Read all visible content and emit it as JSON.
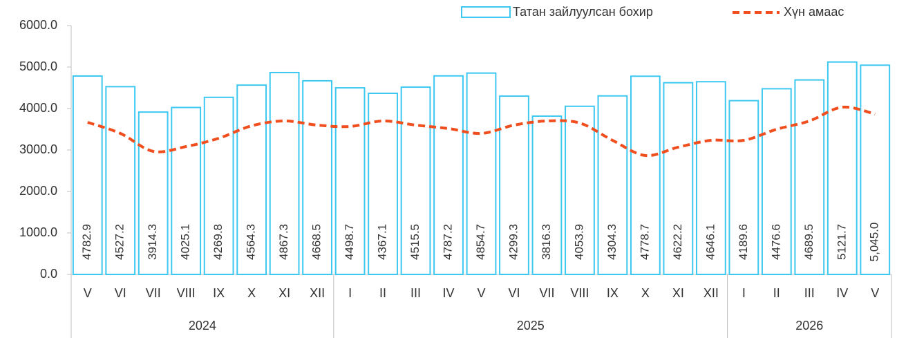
{
  "chart_data": {
    "type": "bar_line",
    "groups": [
      {
        "label": "2024",
        "categories": [
          "V",
          "VI",
          "VII",
          "VIII",
          "IX",
          "X",
          "XI",
          "XII"
        ]
      },
      {
        "label": "2025",
        "categories": [
          "I",
          "II",
          "III",
          "IV",
          "V",
          "VI",
          "VII",
          "VIII",
          "IX",
          "X",
          "XI",
          "XII"
        ]
      },
      {
        "label": "2026",
        "categories": [
          "I",
          "II",
          "III",
          "IV",
          "V"
        ]
      }
    ],
    "series": [
      {
        "name": "Татан зайлуулсан бохир",
        "type": "bar",
        "color": "#3cc8f0",
        "values": [
          4782.9,
          4527.2,
          3914.3,
          4025.1,
          4269.8,
          4564.3,
          4867.3,
          4668.5,
          4498.7,
          4367.1,
          4515.5,
          4787.2,
          4854.7,
          4299.3,
          3816.3,
          4053.9,
          4304.3,
          4778.7,
          4622.2,
          4646.1,
          4189.6,
          4476.6,
          4689.5,
          5121.7,
          5045.0
        ],
        "value_labels": [
          "4782.9",
          "4527.2",
          "3914.3",
          "4025.1",
          "4269.8",
          "4564.3",
          "4867.3",
          "4668.5",
          "4498.7",
          "4367.1",
          "4515.5",
          "4787.2",
          "4854.7",
          "4299.3",
          "3816.3",
          "4053.9",
          "4304.3",
          "4778.7",
          "4622.2",
          "4646.1",
          "4189.6",
          "4476.6",
          "4689.5",
          "5121.7",
          "5,045.0"
        ]
      },
      {
        "name": "Хүн амаас",
        "type": "line",
        "color": "#f04e1e",
        "values": [
          3667,
          3400,
          2967,
          3083,
          3283,
          3583,
          3700,
          3600,
          3567,
          3700,
          3600,
          3517,
          3400,
          3600,
          3700,
          3650,
          3233,
          2867,
          3067,
          3233,
          3233,
          3500,
          3700,
          4033,
          3867
        ]
      }
    ],
    "ylim": [
      0,
      6000
    ],
    "yticks": [
      {
        "value": 0,
        "label": "0.0"
      },
      {
        "value": 1000,
        "label": "1000.0"
      },
      {
        "value": 2000,
        "label": "2000.0"
      },
      {
        "value": 3000,
        "label": "3000.0"
      },
      {
        "value": 4000,
        "label": "4000.0"
      },
      {
        "value": 5000,
        "label": "5000.0"
      },
      {
        "value": 6000,
        "label": "6000.0"
      }
    ],
    "legend": "top-right"
  }
}
